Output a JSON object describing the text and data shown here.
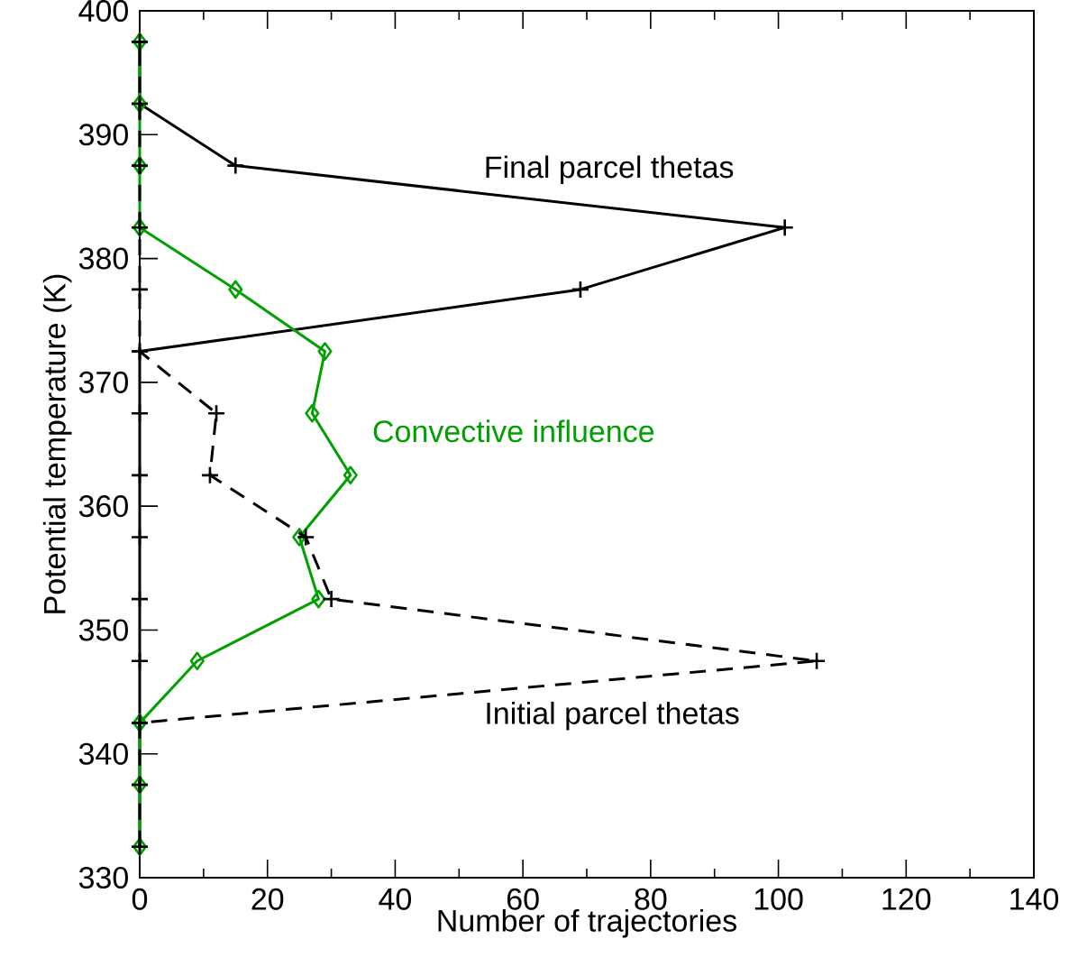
{
  "chart_data": {
    "type": "line",
    "orientation": "horizontal",
    "xlabel": "Number of trajectories",
    "ylabel": "Potential temperature (K)",
    "xlim": [
      0,
      140
    ],
    "xticks": [
      0,
      20,
      40,
      60,
      80,
      100,
      120,
      140
    ],
    "ylim": [
      330,
      400
    ],
    "yticks": [
      330,
      340,
      350,
      360,
      370,
      380,
      390,
      400
    ],
    "grid": false,
    "x": [
      332.5,
      337.5,
      342.5,
      347.5,
      352.5,
      357.5,
      362.5,
      367.5,
      372.5,
      377.5,
      382.5,
      387.5,
      392.5,
      397.5
    ],
    "series": [
      {
        "name": "Final parcel thetas",
        "color": "#000000",
        "marker": "cross",
        "line_style": "solid",
        "values": [
          0,
          0,
          0,
          0,
          0,
          0,
          0,
          0,
          0,
          69,
          101,
          15,
          0,
          0
        ]
      },
      {
        "name": "Convective influence",
        "color": "#00a000",
        "marker": "diamond",
        "line_style": "solid",
        "values": [
          0,
          0,
          0,
          9,
          28,
          25,
          33,
          27,
          29,
          15,
          0,
          0,
          0,
          0
        ]
      },
      {
        "name": "Initial parcel thetas",
        "color": "#000000",
        "marker": "cross",
        "line_style": "dashed",
        "values": [
          0,
          0,
          0,
          106,
          30,
          26,
          11,
          12,
          0,
          0,
          0,
          0,
          0,
          0
        ]
      }
    ]
  }
}
